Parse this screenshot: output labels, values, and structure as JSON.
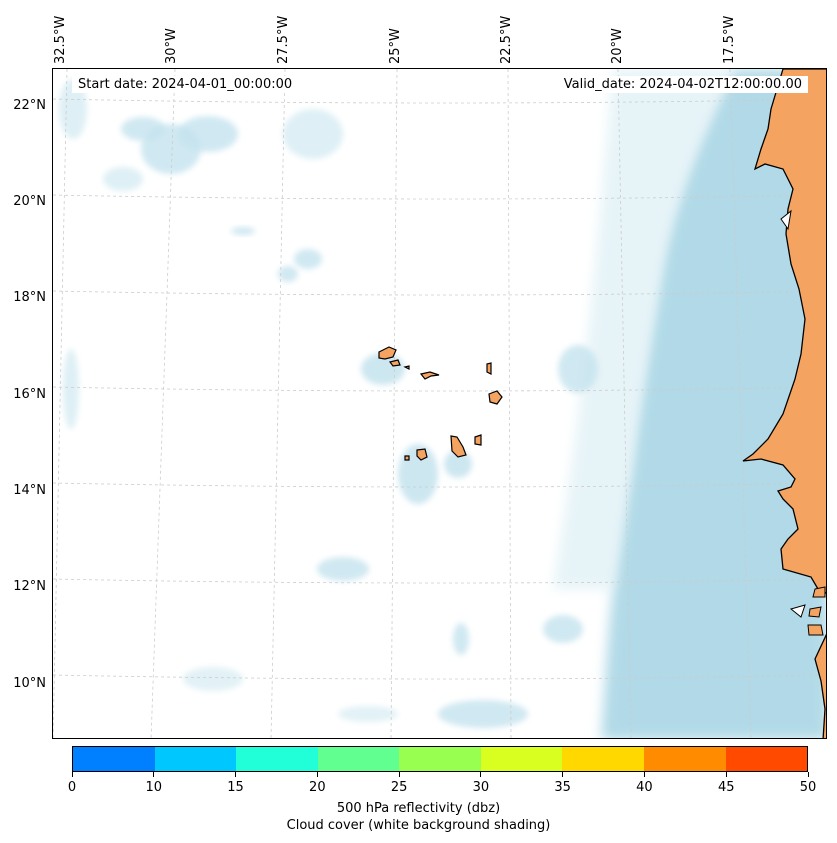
{
  "map": {
    "start_date": "Start date: 2024-04-01_00:00:00",
    "valid_date": "Valid_date: 2024-04-02T12:00:00.00",
    "lon_labels": [
      "32.5°W",
      "30°W",
      "27.5°W",
      "25°W",
      "22.5°W",
      "20°W",
      "17.5°W"
    ],
    "lat_labels": [
      "22°N",
      "20°N",
      "18°N",
      "16°N",
      "14°N",
      "12°N",
      "10°N"
    ],
    "colors": {
      "cloud": "#add8e6",
      "land": "#f4a460",
      "coast": "#000000",
      "grid": "#cccccc"
    }
  },
  "colorbar": {
    "ticks": [
      "0",
      "10",
      "15",
      "20",
      "25",
      "30",
      "35",
      "40",
      "45",
      "50"
    ],
    "colors": [
      "#0080ff",
      "#00c8ff",
      "#20ffd8",
      "#60ff90",
      "#98ff50",
      "#d8ff20",
      "#ffd800",
      "#ff8c00",
      "#ff4a00"
    ],
    "label_line1": "500 hPa reflectivity (dbz)",
    "label_line2": "Cloud cover (white background shading)"
  }
}
